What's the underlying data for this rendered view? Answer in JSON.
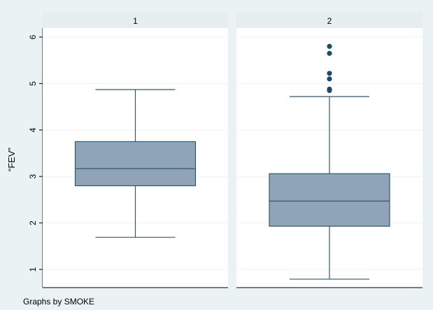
{
  "chart_data": {
    "type": "box",
    "ylabel": "“FEV”",
    "ylim": [
      0.6,
      6.2
    ],
    "yticks": [
      1,
      2,
      3,
      4,
      5,
      6
    ],
    "grid": true,
    "facets": [
      {
        "label": "1",
        "whisker_low": 1.69,
        "q1": 2.8,
        "median": 3.17,
        "q3": 3.75,
        "whisker_high": 4.87,
        "outliers": []
      },
      {
        "label": "2",
        "whisker_low": 0.79,
        "q1": 1.93,
        "median": 2.47,
        "q3": 3.06,
        "whisker_high": 4.72,
        "outliers": [
          5.8,
          5.65,
          5.22,
          5.1,
          4.88,
          4.85
        ]
      }
    ],
    "note": "Graphs by SMOKE",
    "colors": {
      "box_fill": "#8fa4b6",
      "box_stroke": "#2f5872",
      "outlier": "#1f4a68",
      "strip": "#e6eef0",
      "grid": "#eef3f4",
      "background": "#eaf2f3"
    }
  }
}
